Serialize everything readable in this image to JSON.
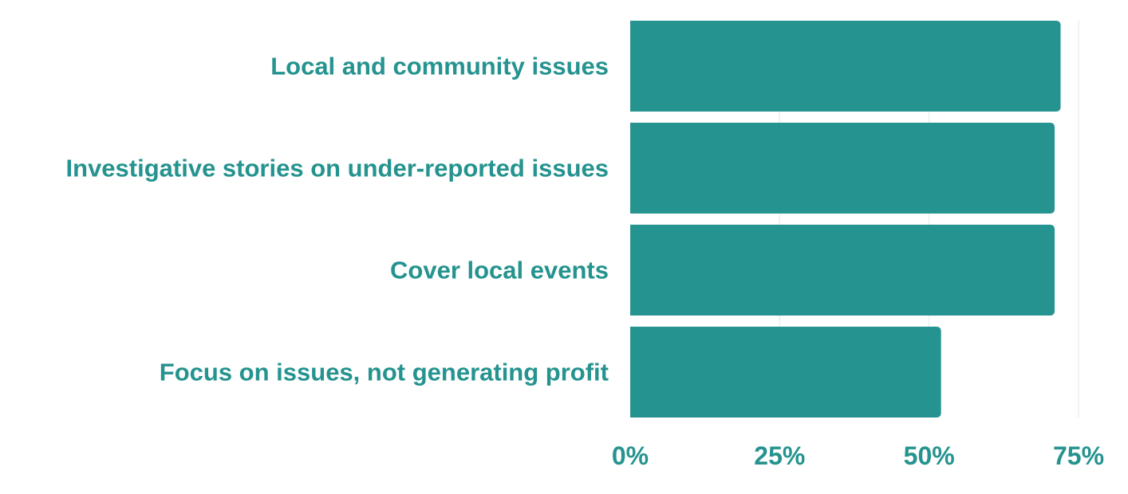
{
  "chart_data": {
    "type": "bar",
    "orientation": "horizontal",
    "title": "",
    "xlabel": "",
    "ylabel": "",
    "categories": [
      "Local and community issues",
      "Investigative stories on under-reported issues",
      "Cover local events",
      "Focus on issues, not generating profit"
    ],
    "values": [
      72,
      71,
      71,
      52
    ],
    "xlim": [
      0,
      75
    ],
    "x_ticks": [
      0,
      25,
      50,
      75
    ],
    "x_tick_labels": [
      "0%",
      "25%",
      "50%",
      "75%"
    ],
    "grid": "vertical",
    "legend": "none",
    "colors": {
      "bar": "#25938f",
      "text": "#25938f",
      "grid": "#e6f1f0"
    }
  }
}
